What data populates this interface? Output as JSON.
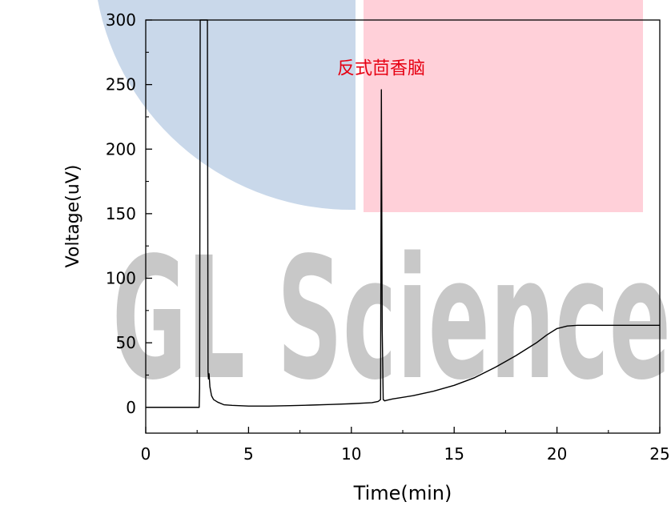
{
  "watermark": {
    "text": "GL Science",
    "blue": "#c9d8ea",
    "pink": "#ffd0d9",
    "gray": "#c8c8c8"
  },
  "chart_data": {
    "type": "line",
    "title": "",
    "xlabel": "Time(min)",
    "ylabel": "Voltage(uV)",
    "xlim": [
      0,
      25
    ],
    "ylim": [
      -20,
      300
    ],
    "xticks": [
      0,
      5,
      10,
      15,
      20,
      25
    ],
    "yticks": [
      0,
      50,
      100,
      150,
      200,
      250,
      300
    ],
    "grid": false,
    "line_color": "#000000",
    "series": [
      {
        "x": [
          0,
          2.6,
          2.62,
          2.65,
          2.7,
          2.75,
          2.8,
          2.85,
          2.9,
          2.95,
          3.0,
          3.03,
          3.05,
          3.08,
          3.12,
          3.2,
          3.3,
          3.5,
          3.8,
          4.2,
          5.0,
          6.0,
          7.0,
          8.0,
          9.0,
          10.0,
          11.0,
          11.3,
          11.42,
          11.46,
          11.5,
          11.55,
          11.62,
          11.7,
          12.0,
          13.0,
          14.0,
          15.0,
          16.0,
          17.0,
          18.0,
          19.0,
          19.5,
          20.0,
          20.5,
          21.0,
          22.0,
          23.0,
          24.0,
          25.0
        ],
        "y": [
          0,
          0,
          15,
          300,
          300,
          300,
          300,
          300,
          300,
          300,
          300,
          28,
          22,
          26,
          16,
          9,
          6,
          4,
          2,
          1.5,
          1,
          1,
          1.3,
          1.7,
          2.2,
          2.8,
          3.6,
          4.5,
          6,
          246,
          60,
          6,
          5,
          5.4,
          6.5,
          9,
          12.5,
          17,
          23,
          31,
          40,
          50,
          56,
          61,
          63,
          63.5,
          63.5,
          63.5,
          63.5,
          63.5
        ]
      }
    ],
    "annotations": [
      {
        "text": "反式茴香脑",
        "x": 11.45,
        "y": 262,
        "color": "#e60012"
      }
    ]
  }
}
